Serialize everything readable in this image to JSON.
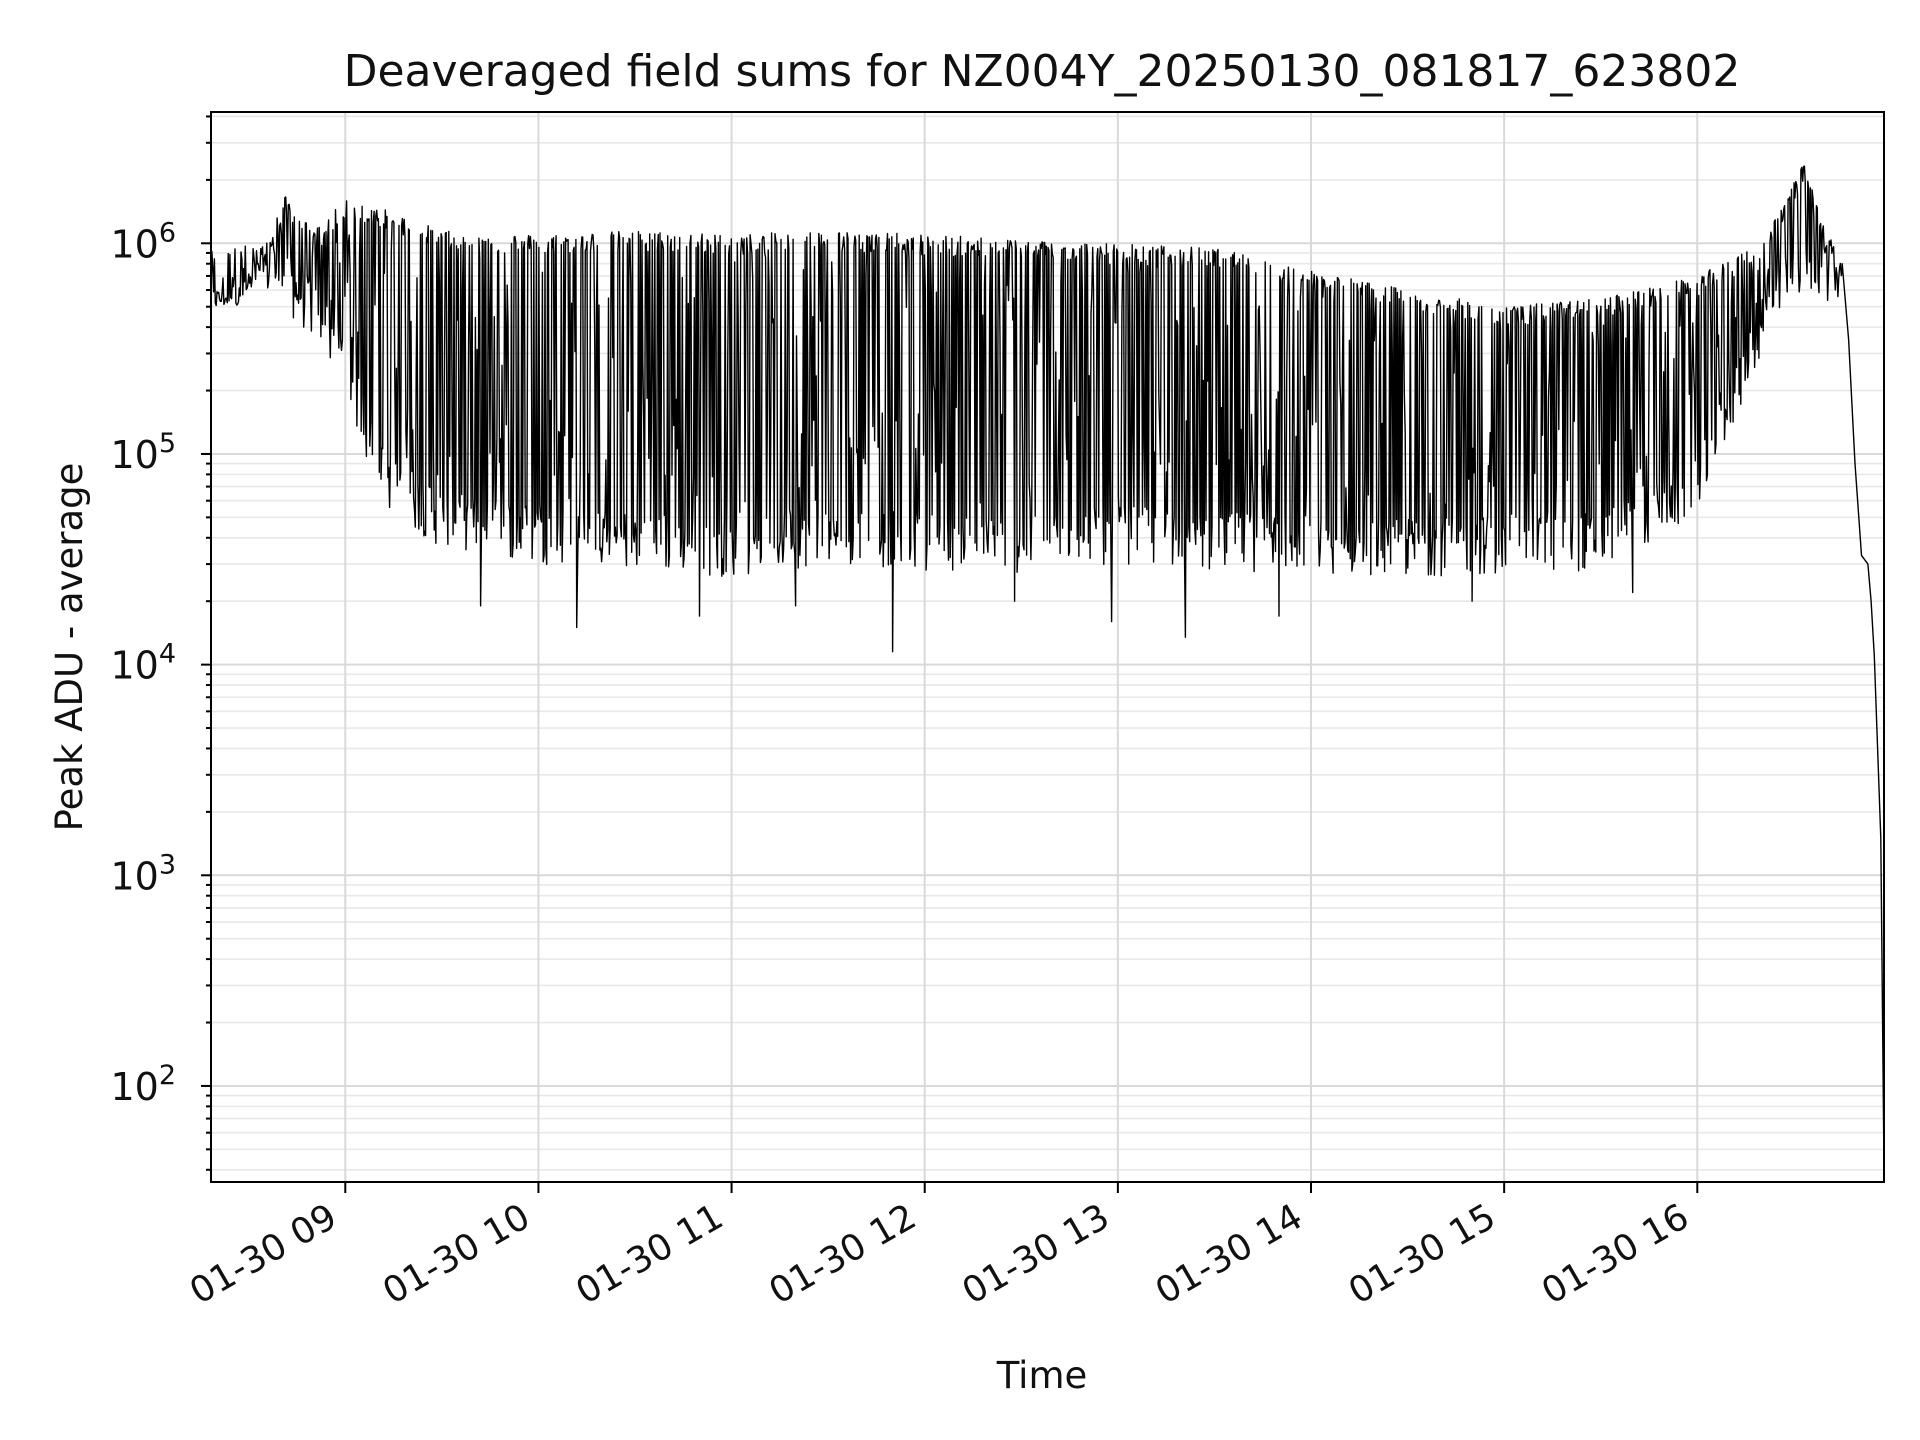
{
  "chart_data": {
    "type": "line",
    "title": "Deaveraged field sums for NZ004Y_20250130_081817_623802",
    "xlabel": "Time",
    "ylabel": "Peak ADU - average",
    "yscale": "log",
    "ylim": [
      35,
      4200000
    ],
    "xlim": [
      "2025-01-30 08:18:17",
      "2025-01-30 16:58:00"
    ],
    "grid": true,
    "x_ticks": [
      {
        "value": "2025-01-30 09:00",
        "label": "01-30 09"
      },
      {
        "value": "2025-01-30 10:00",
        "label": "01-30 10"
      },
      {
        "value": "2025-01-30 11:00",
        "label": "01-30 11"
      },
      {
        "value": "2025-01-30 12:00",
        "label": "01-30 12"
      },
      {
        "value": "2025-01-30 13:00",
        "label": "01-30 13"
      },
      {
        "value": "2025-01-30 14:00",
        "label": "01-30 14"
      },
      {
        "value": "2025-01-30 15:00",
        "label": "01-30 15"
      },
      {
        "value": "2025-01-30 16:00",
        "label": "01-30 16"
      }
    ],
    "y_ticks": [
      {
        "value": 100,
        "base": "10",
        "exp": "2"
      },
      {
        "value": 1000,
        "base": "10",
        "exp": "3"
      },
      {
        "value": 10000,
        "base": "10",
        "exp": "4"
      },
      {
        "value": 100000,
        "base": "10",
        "exp": "5"
      },
      {
        "value": 1000000,
        "base": "10",
        "exp": "6"
      }
    ],
    "series": [
      {
        "color": "#000000",
        "upper_envelope": [
          {
            "x": "2025-01-30 08:18:17",
            "y": 600000
          },
          {
            "x": "2025-01-30 08:28",
            "y": 620000
          },
          {
            "x": "2025-01-30 08:36",
            "y": 1000000
          },
          {
            "x": "2025-01-30 08:41",
            "y": 1700000
          },
          {
            "x": "2025-01-30 08:50",
            "y": 1150000
          },
          {
            "x": "2025-01-30 09:00",
            "y": 1600000
          },
          {
            "x": "2025-01-30 09:10",
            "y": 1500000
          },
          {
            "x": "2025-01-30 09:30",
            "y": 1150000
          },
          {
            "x": "2025-01-30 10:00",
            "y": 1100000
          },
          {
            "x": "2025-01-30 10:30",
            "y": 1150000
          },
          {
            "x": "2025-01-30 11:00",
            "y": 1100000
          },
          {
            "x": "2025-01-30 11:30",
            "y": 1150000
          },
          {
            "x": "2025-01-30 12:00",
            "y": 1100000
          },
          {
            "x": "2025-01-30 12:30",
            "y": 1050000
          },
          {
            "x": "2025-01-30 13:00",
            "y": 1000000
          },
          {
            "x": "2025-01-30 13:30",
            "y": 950000
          },
          {
            "x": "2025-01-30 14:00",
            "y": 750000
          },
          {
            "x": "2025-01-30 14:30",
            "y": 600000
          },
          {
            "x": "2025-01-30 15:00",
            "y": 500000
          },
          {
            "x": "2025-01-30 15:30",
            "y": 550000
          },
          {
            "x": "2025-01-30 16:00",
            "y": 700000
          },
          {
            "x": "2025-01-30 16:20",
            "y": 1000000
          },
          {
            "x": "2025-01-30 16:33",
            "y": 2400000
          },
          {
            "x": "2025-01-30 16:40",
            "y": 1200000
          },
          {
            "x": "2025-01-30 16:45",
            "y": 800000
          }
        ],
        "lower_envelope": [
          {
            "x": "2025-01-30 08:18:17",
            "y": 480000
          },
          {
            "x": "2025-01-30 08:36",
            "y": 550000
          },
          {
            "x": "2025-01-30 08:50",
            "y": 350000
          },
          {
            "x": "2025-01-30 09:00",
            "y": 200000
          },
          {
            "x": "2025-01-30 09:10",
            "y": 60000
          },
          {
            "x": "2025-01-30 09:30",
            "y": 35000
          },
          {
            "x": "2025-01-30 10:00",
            "y": 30000
          },
          {
            "x": "2025-01-30 10:30",
            "y": 28000
          },
          {
            "x": "2025-01-30 11:00",
            "y": 26000
          },
          {
            "x": "2025-01-30 11:30",
            "y": 30000
          },
          {
            "x": "2025-01-30 12:00",
            "y": 28000
          },
          {
            "x": "2025-01-30 12:30",
            "y": 27000
          },
          {
            "x": "2025-01-30 13:00",
            "y": 30000
          },
          {
            "x": "2025-01-30 13:30",
            "y": 28000
          },
          {
            "x": "2025-01-30 14:00",
            "y": 27000
          },
          {
            "x": "2025-01-30 14:30",
            "y": 26000
          },
          {
            "x": "2025-01-30 15:00",
            "y": 27000
          },
          {
            "x": "2025-01-30 15:30",
            "y": 28000
          },
          {
            "x": "2025-01-30 16:00",
            "y": 50000
          },
          {
            "x": "2025-01-30 16:20",
            "y": 300000
          },
          {
            "x": "2025-01-30 16:33",
            "y": 600000
          },
          {
            "x": "2025-01-30 16:45",
            "y": 500000
          }
        ],
        "deep_dips": [
          {
            "x": "2025-01-30 09:42",
            "y": 19000
          },
          {
            "x": "2025-01-30 10:12",
            "y": 15000
          },
          {
            "x": "2025-01-30 10:50",
            "y": 17000
          },
          {
            "x": "2025-01-30 11:20",
            "y": 19000
          },
          {
            "x": "2025-01-30 11:50",
            "y": 11500
          },
          {
            "x": "2025-01-30 12:28",
            "y": 20000
          },
          {
            "x": "2025-01-30 12:58",
            "y": 16000
          },
          {
            "x": "2025-01-30 13:21",
            "y": 13500
          },
          {
            "x": "2025-01-30 13:50",
            "y": 17000
          },
          {
            "x": "2025-01-30 14:50",
            "y": 20000
          },
          {
            "x": "2025-01-30 15:40",
            "y": 22000
          }
        ],
        "tail": [
          {
            "x": "2025-01-30 16:45",
            "y": 800000
          },
          {
            "x": "2025-01-30 16:47",
            "y": 350000
          },
          {
            "x": "2025-01-30 16:49",
            "y": 90000
          },
          {
            "x": "2025-01-30 16:51",
            "y": 33000
          },
          {
            "x": "2025-01-30 16:53",
            "y": 30000
          },
          {
            "x": "2025-01-30 16:54",
            "y": 20000
          },
          {
            "x": "2025-01-30 16:55",
            "y": 11000
          },
          {
            "x": "2025-01-30 16:56",
            "y": 4000
          },
          {
            "x": "2025-01-30 16:57",
            "y": 1500
          },
          {
            "x": "2025-01-30 16:58",
            "y": 40
          }
        ]
      }
    ]
  }
}
